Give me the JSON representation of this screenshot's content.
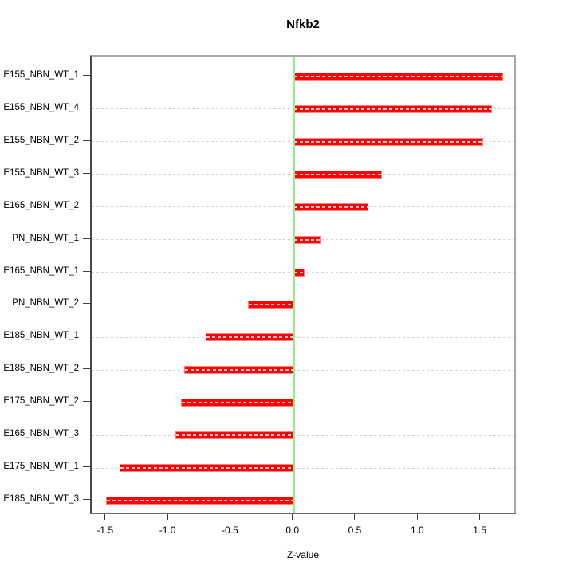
{
  "chart_data": {
    "type": "bar",
    "orientation": "horizontal",
    "title": "Nfkb2",
    "xlabel": "Z-value",
    "ylabel": "",
    "categories": [
      "E155_NBN_WT_1",
      "E155_NBN_WT_4",
      "E155_NBN_WT_2",
      "E155_NBN_WT_3",
      "E165_NBN_WT_2",
      "PN_NBN_WT_1",
      "E165_NBN_WT_1",
      "PN_NBN_WT_2",
      "E185_NBN_WT_1",
      "E185_NBN_WT_2",
      "E175_NBN_WT_2",
      "E165_NBN_WT_3",
      "E175_NBN_WT_1",
      "E185_NBN_WT_3"
    ],
    "values": [
      1.67,
      1.58,
      1.51,
      0.7,
      0.59,
      0.21,
      0.08,
      -0.36,
      -0.7,
      -0.87,
      -0.9,
      -0.94,
      -1.39,
      -1.5
    ],
    "xlim": [
      -1.62,
      1.79
    ],
    "xticks": [
      -1.5,
      -1.0,
      -0.5,
      0.0,
      0.5,
      1.0,
      1.5
    ],
    "xtick_labels": [
      "-1.5",
      "-1.0",
      "-0.5",
      "0.0",
      "0.5",
      "1.0",
      "1.5"
    ],
    "zero_line_value": 0,
    "grid": "dashed horizontal line per category row",
    "legend": "none",
    "colors": {
      "bar_fill": "#ff0000",
      "bar_border": "#ff8080",
      "bar_center_dash": "#ffffff",
      "zero_line": "#90ee90",
      "gridline": "#d4d4d4",
      "frame": "#8c8c8c",
      "tick": "#404040",
      "text": "#000000",
      "background": "#ffffff"
    }
  }
}
